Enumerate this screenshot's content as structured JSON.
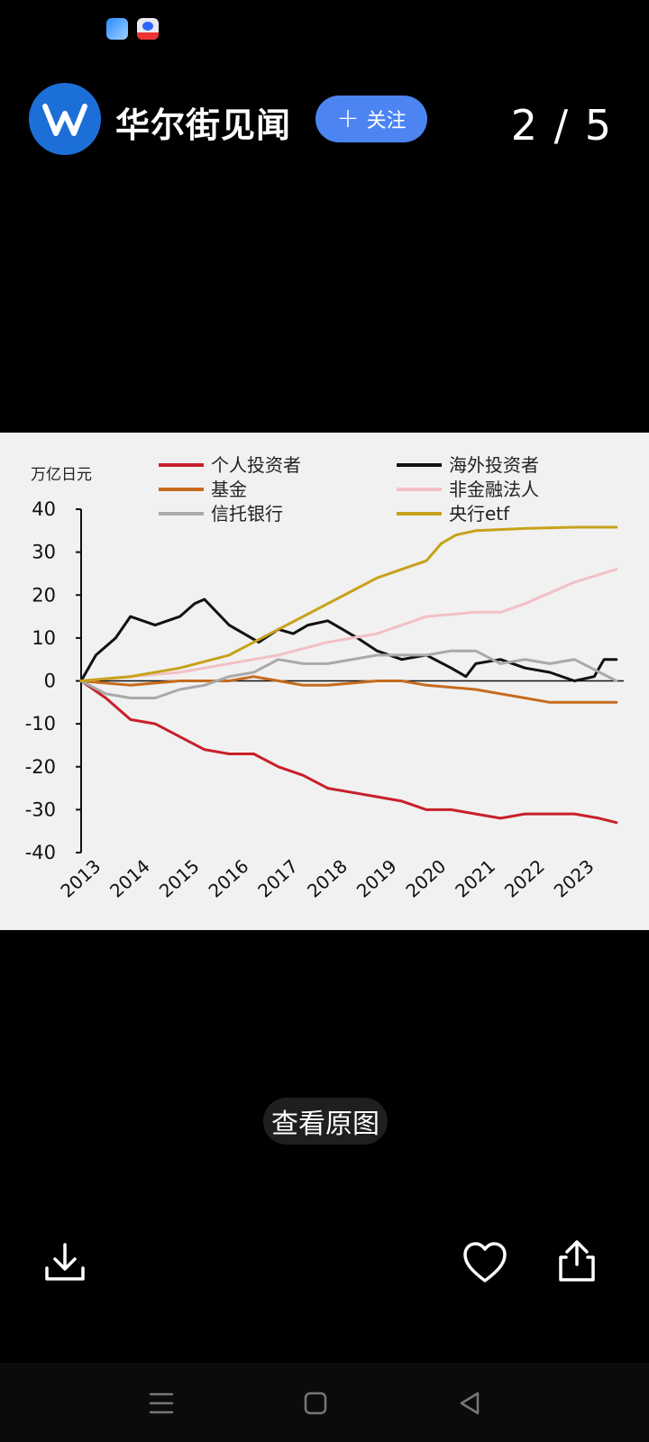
{
  "header": {
    "account_name": "华尔街见闻",
    "follow_label": "关注",
    "page_counter": "2 / 5"
  },
  "chart_data": {
    "type": "line",
    "ylabel": "万亿日元",
    "ylim": [
      -40,
      40
    ],
    "yticks": [
      40,
      30,
      20,
      10,
      0,
      -10,
      -20,
      -30,
      -40
    ],
    "x_ticks": [
      "2013",
      "2014",
      "2015",
      "2016",
      "2017",
      "2018",
      "2019",
      "2020",
      "2021",
      "2022",
      "2023"
    ],
    "legend_position": "top",
    "series": [
      {
        "name": "个人投资者",
        "color": "#c8202a",
        "points": [
          [
            2013,
            0
          ],
          [
            2013.5,
            -4
          ],
          [
            2014,
            -9
          ],
          [
            2014.5,
            -10
          ],
          [
            2015,
            -13
          ],
          [
            2015.5,
            -16
          ],
          [
            2016,
            -17
          ],
          [
            2016.5,
            -17
          ],
          [
            2017,
            -20
          ],
          [
            2017.5,
            -22
          ],
          [
            2018,
            -25
          ],
          [
            2018.5,
            -26
          ],
          [
            2019,
            -27
          ],
          [
            2019.5,
            -28
          ],
          [
            2020,
            -30
          ],
          [
            2020.5,
            -30
          ],
          [
            2021,
            -31
          ],
          [
            2021.5,
            -32
          ],
          [
            2022,
            -31
          ],
          [
            2022.5,
            -31
          ],
          [
            2023,
            -31
          ],
          [
            2023.5,
            -32
          ],
          [
            2023.85,
            -33
          ]
        ]
      },
      {
        "name": "海外投资者",
        "color": "#111111",
        "points": [
          [
            2013,
            0
          ],
          [
            2013.3,
            6
          ],
          [
            2013.7,
            10
          ],
          [
            2014,
            15
          ],
          [
            2014.5,
            13
          ],
          [
            2015,
            15
          ],
          [
            2015.3,
            18
          ],
          [
            2015.5,
            19
          ],
          [
            2016,
            13
          ],
          [
            2016.3,
            11
          ],
          [
            2016.6,
            9
          ],
          [
            2017,
            12
          ],
          [
            2017.3,
            11
          ],
          [
            2017.6,
            13
          ],
          [
            2018,
            14
          ],
          [
            2018.3,
            12
          ],
          [
            2018.6,
            10
          ],
          [
            2019,
            7
          ],
          [
            2019.5,
            5
          ],
          [
            2020,
            6
          ],
          [
            2020.5,
            3
          ],
          [
            2020.8,
            1
          ],
          [
            2021,
            4
          ],
          [
            2021.5,
            5
          ],
          [
            2022,
            3
          ],
          [
            2022.5,
            2
          ],
          [
            2023,
            0
          ],
          [
            2023.4,
            1
          ],
          [
            2023.6,
            5
          ],
          [
            2023.85,
            5
          ]
        ]
      },
      {
        "name": "基金",
        "color": "#c76a1e",
        "points": [
          [
            2013,
            0
          ],
          [
            2014,
            -1
          ],
          [
            2015,
            0
          ],
          [
            2016,
            0
          ],
          [
            2016.5,
            1
          ],
          [
            2017,
            0
          ],
          [
            2017.5,
            -1
          ],
          [
            2018,
            -1
          ],
          [
            2019,
            0
          ],
          [
            2019.5,
            0
          ],
          [
            2020,
            -1
          ],
          [
            2021,
            -2
          ],
          [
            2021.5,
            -3
          ],
          [
            2022,
            -4
          ],
          [
            2022.5,
            -5
          ],
          [
            2023,
            -5
          ],
          [
            2023.85,
            -5
          ]
        ]
      },
      {
        "name": "非金融法人",
        "color": "#f2c0c6",
        "points": [
          [
            2013,
            0
          ],
          [
            2014,
            1
          ],
          [
            2015,
            2
          ],
          [
            2016,
            4
          ],
          [
            2017,
            6
          ],
          [
            2018,
            9
          ],
          [
            2019,
            11
          ],
          [
            2020,
            15
          ],
          [
            2021,
            16
          ],
          [
            2021.5,
            16
          ],
          [
            2022,
            18
          ],
          [
            2023,
            23
          ],
          [
            2023.85,
            26
          ]
        ]
      },
      {
        "name": "信托银行",
        "color": "#a9a9a9",
        "points": [
          [
            2013,
            0
          ],
          [
            2013.5,
            -3
          ],
          [
            2014,
            -4
          ],
          [
            2014.5,
            -4
          ],
          [
            2015,
            -2
          ],
          [
            2015.5,
            -1
          ],
          [
            2016,
            1
          ],
          [
            2016.5,
            2
          ],
          [
            2017,
            5
          ],
          [
            2017.5,
            4
          ],
          [
            2018,
            4
          ],
          [
            2018.5,
            5
          ],
          [
            2019,
            6
          ],
          [
            2019.5,
            6
          ],
          [
            2020,
            6
          ],
          [
            2020.5,
            7
          ],
          [
            2021,
            7
          ],
          [
            2021.5,
            4
          ],
          [
            2022,
            5
          ],
          [
            2022.5,
            4
          ],
          [
            2023,
            5
          ],
          [
            2023.85,
            0
          ]
        ]
      },
      {
        "name": "央行etf",
        "color": "#c7a21a",
        "points": [
          [
            2013,
            0
          ],
          [
            2014,
            1
          ],
          [
            2015,
            3
          ],
          [
            2016,
            6
          ],
          [
            2016.5,
            9
          ],
          [
            2017,
            12
          ],
          [
            2017.5,
            15
          ],
          [
            2018,
            18
          ],
          [
            2018.5,
            21
          ],
          [
            2019,
            24
          ],
          [
            2019.5,
            26
          ],
          [
            2020,
            28
          ],
          [
            2020.3,
            32
          ],
          [
            2020.6,
            34
          ],
          [
            2021,
            35
          ],
          [
            2022,
            35.5
          ],
          [
            2023,
            35.8
          ],
          [
            2023.85,
            35.8
          ]
        ]
      }
    ]
  },
  "view_original_label": "查看原图",
  "icons": {
    "download": "download-icon",
    "like": "heart-icon",
    "share": "share-icon"
  }
}
